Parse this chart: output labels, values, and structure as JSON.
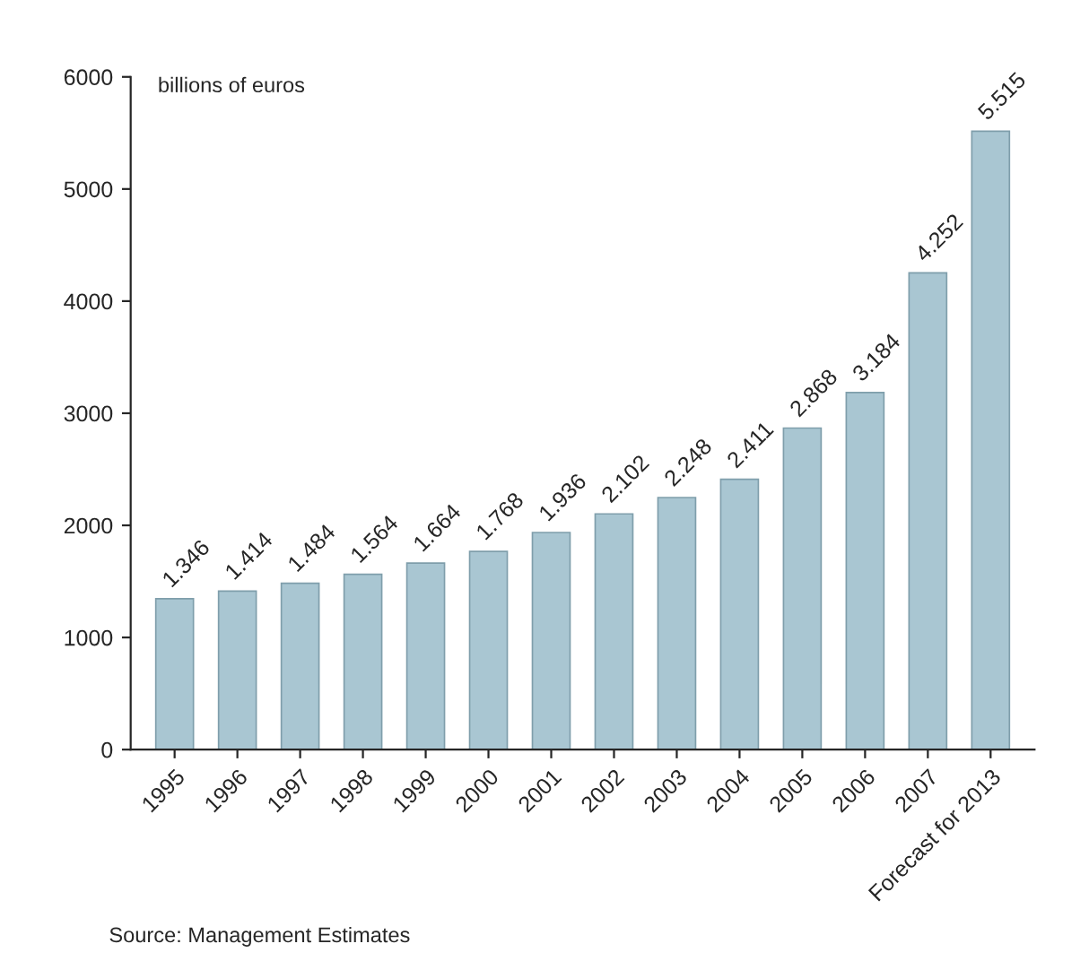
{
  "chart_data": {
    "type": "bar",
    "ylabel": "billions of euros",
    "categories": [
      "1995",
      "1996",
      "1997",
      "1998",
      "1999",
      "2000",
      "2001",
      "2002",
      "2003",
      "2004",
      "2005",
      "2006",
      "2007",
      "Forecast for 2013"
    ],
    "values": [
      1346,
      1414,
      1484,
      1564,
      1664,
      1768,
      1936,
      2102,
      2248,
      2411,
      2868,
      3184,
      4252,
      5515
    ],
    "value_labels": [
      "1.346",
      "1.414",
      "1.484",
      "1.564",
      "1.664",
      "1.768",
      "1.936",
      "2.102",
      "2.248",
      "2.411",
      "2.868",
      "3.184",
      "4.252",
      "5.515"
    ],
    "color": "#a9c6d2",
    "ylim": [
      0,
      6000
    ],
    "yticks": [
      0,
      1000,
      2000,
      3000,
      4000,
      5000,
      6000
    ],
    "grid": false,
    "legend": false,
    "annotations": [
      "Source: Management Estimates"
    ]
  }
}
